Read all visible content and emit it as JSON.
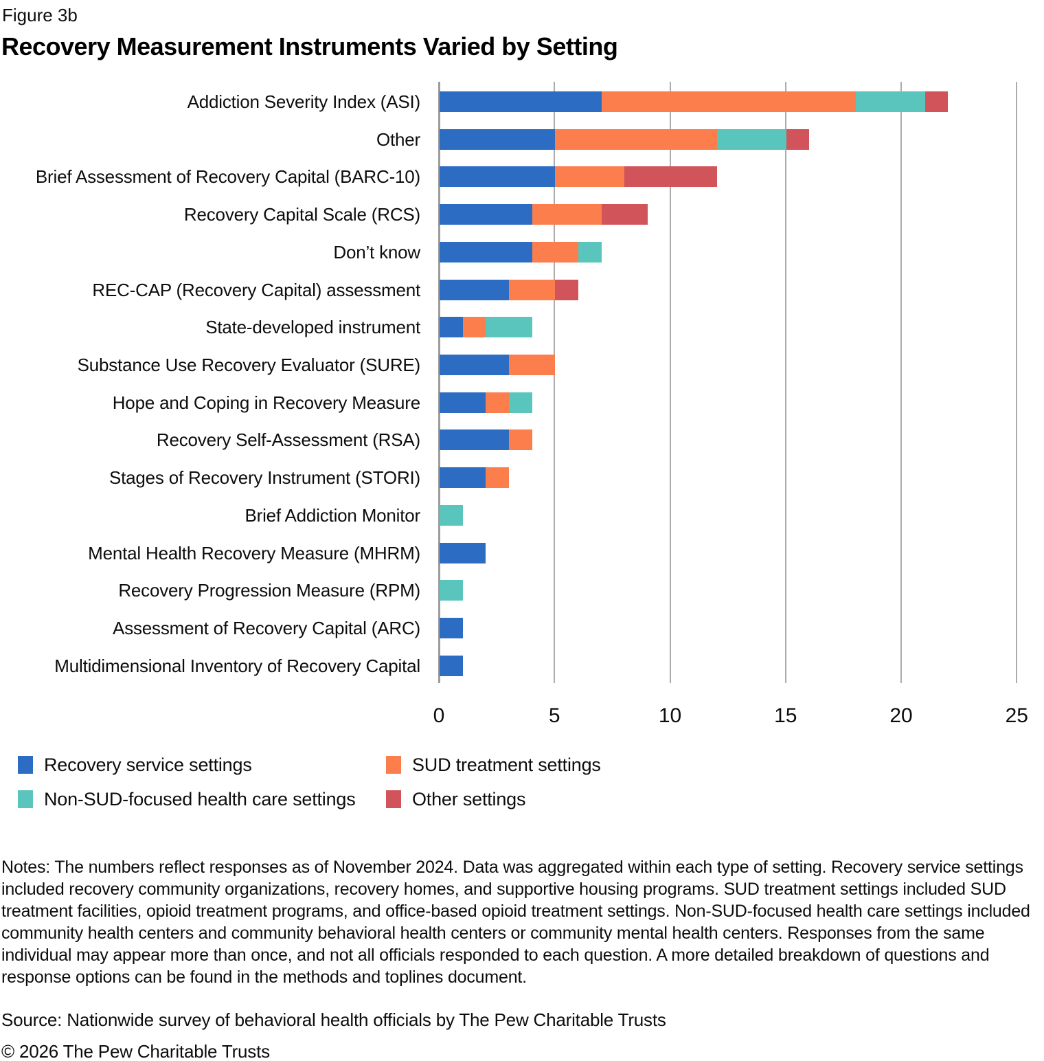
{
  "figure_label": "Figure 3b",
  "title": "Recovery Measurement Instruments Varied by Setting",
  "chart_data": {
    "type": "bar",
    "orientation": "horizontal",
    "stacked": true,
    "title": "Recovery Measurement Instruments Varied by Setting",
    "xlabel": "",
    "ylabel": "",
    "xlim": [
      0,
      25
    ],
    "xticks": [
      0,
      5,
      10,
      15,
      20,
      25
    ],
    "grid": "vertical",
    "legend_position": "bottom-left",
    "categories": [
      "Addiction Severity Index (ASI)",
      "Other",
      "Brief Assessment of Recovery Capital (BARC-10)",
      "Recovery Capital Scale (RCS)",
      "Don’t know",
      "REC-CAP (Recovery Capital) assessment",
      "State-developed instrument",
      "Substance Use Recovery Evaluator (SURE)",
      "Hope and Coping in Recovery Measure",
      "Recovery Self-Assessment (RSA)",
      "Stages of Recovery Instrument (STORI)",
      "Brief Addiction Monitor",
      "Mental Health Recovery Measure (MHRM)",
      "Recovery Progression Measure (RPM)",
      "Assessment of Recovery Capital (ARC)",
      "Multidimensional Inventory of Recovery Capital"
    ],
    "series": [
      {
        "name": "Recovery service settings",
        "color": "#2c6dc3",
        "values": [
          7,
          5,
          5,
          4,
          4,
          3,
          1,
          3,
          2,
          3,
          2,
          0,
          2,
          0,
          1,
          1
        ]
      },
      {
        "name": "SUD treatment settings",
        "color": "#fb7e4c",
        "values": [
          11,
          7,
          3,
          3,
          2,
          2,
          1,
          2,
          1,
          1,
          1,
          0,
          0,
          0,
          0,
          0
        ]
      },
      {
        "name": "Non-SUD-focused health care settings",
        "color": "#59c5bc",
        "values": [
          3,
          3,
          0,
          0,
          1,
          0,
          2,
          0,
          1,
          0,
          0,
          1,
          0,
          1,
          0,
          0
        ]
      },
      {
        "name": "Other settings",
        "color": "#d1545a",
        "values": [
          1,
          1,
          4,
          2,
          0,
          1,
          0,
          0,
          0,
          0,
          0,
          0,
          0,
          0,
          0,
          0
        ]
      }
    ],
    "totals": [
      22,
      16,
      12,
      9,
      7,
      6,
      4,
      5,
      4,
      4,
      3,
      1,
      2,
      1,
      1,
      1
    ]
  },
  "notes": "Notes: The numbers reflect responses as of November 2024. Data was aggregated within each type of setting. Recovery service settings included recovery community organizations, recovery homes, and supportive housing programs. SUD treatment settings included SUD treatment facilities, opioid treatment programs, and office-based opioid treatment settings. Non-SUD-focused health care settings included community health centers and community behavioral health centers or community mental health centers. Responses from the same individual may appear more than once, and not all officials responded to each question. A more detailed breakdown of questions and response options can be found in the methods and toplines document.",
  "source": "Source: Nationwide survey of behavioral health officials by The Pew Charitable Trusts",
  "copyright": "© 2026 The Pew Charitable Trusts"
}
